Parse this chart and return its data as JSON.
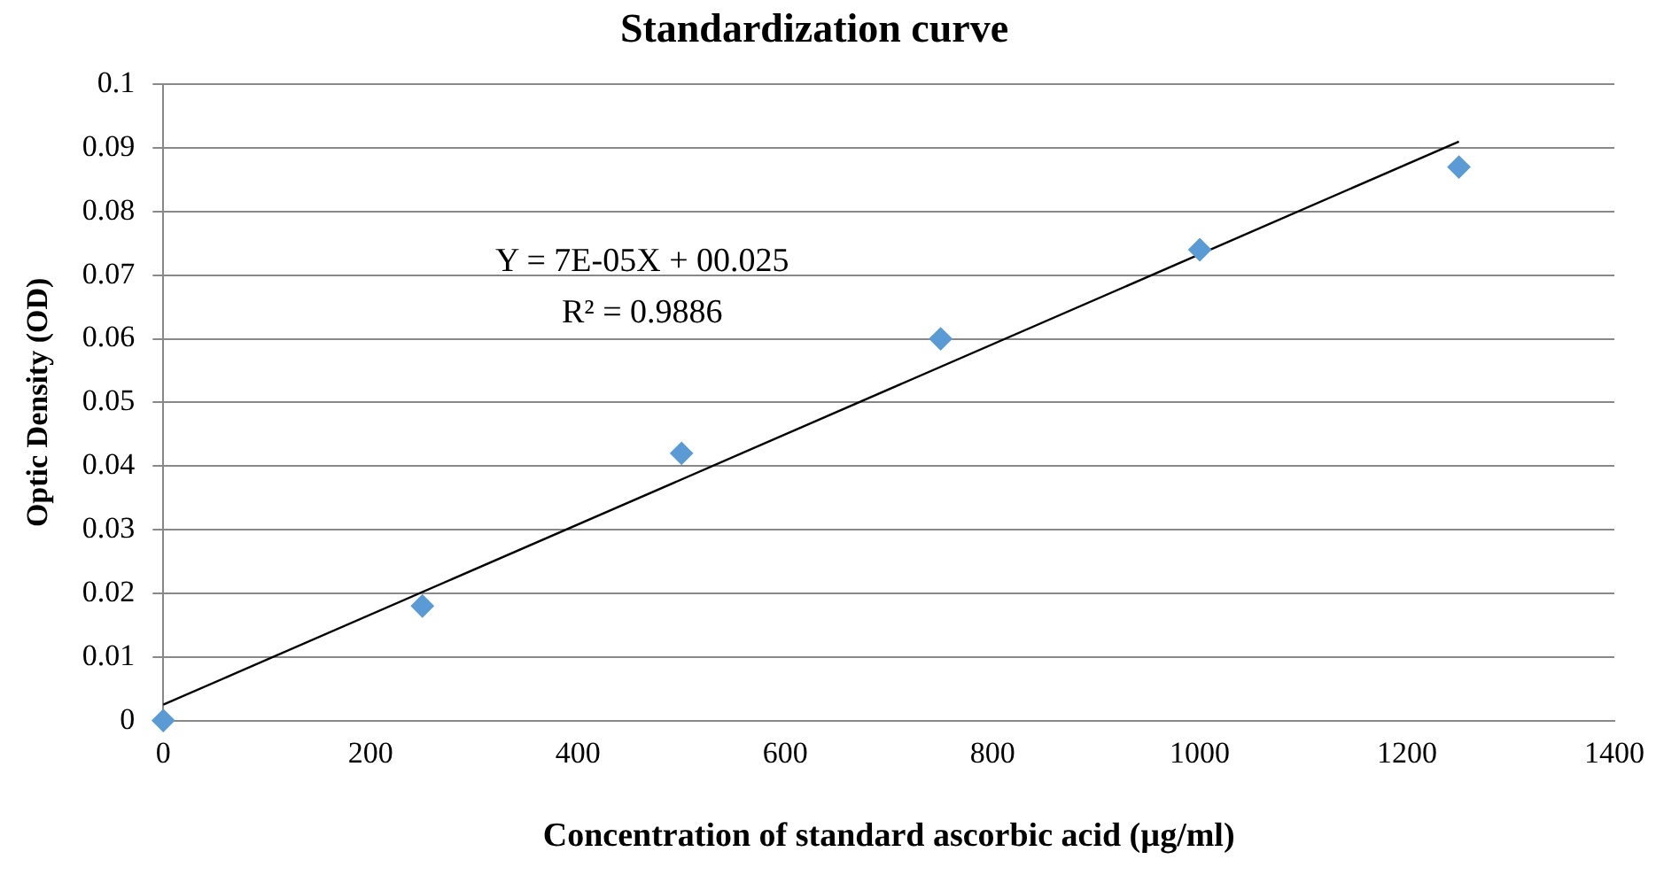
{
  "chart_data": {
    "type": "scatter",
    "title": "Standardization curve",
    "xlabel": "Concentration of standard ascorbic acid (µg/ml)",
    "ylabel": "Optic Density (OD)",
    "x": [
      0,
      250,
      500,
      750,
      1000,
      1250
    ],
    "series": [
      {
        "color": "#5b9bd5",
        "values": [
          0,
          0.018,
          0.042,
          0.06,
          0.074,
          0.087
        ],
        "marker": "diamond"
      },
      {
        "type": "line",
        "color": "#000000",
        "x": [
          0,
          1250
        ],
        "values": [
          0.0025,
          0.091
        ],
        "marker": "none"
      }
    ],
    "annotations": [
      "Y = 7E-05X + 00.025",
      "R² = 0.9886"
    ],
    "xlim": [
      0,
      1400
    ],
    "xticks": [
      0,
      200,
      400,
      600,
      800,
      1000,
      1200,
      1400
    ],
    "ylim": [
      0,
      0.1
    ],
    "yticks": [
      0,
      0.01,
      0.02,
      0.03,
      0.04,
      0.05,
      0.06,
      0.07,
      0.08,
      0.09,
      0.1
    ],
    "grid": "y",
    "legend": false
  }
}
